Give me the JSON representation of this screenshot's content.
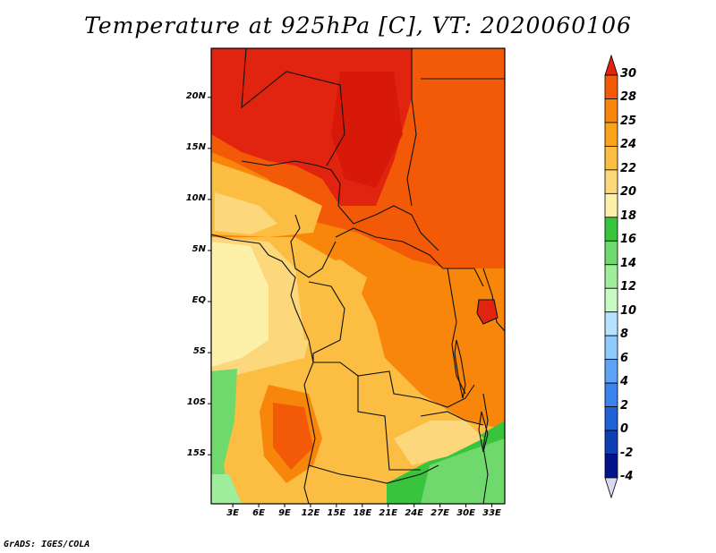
{
  "title": "Temperature at 925hPa [C], VT: 2020060106",
  "footer": "GrADS: IGES/COLA",
  "lat_labels": [
    "20N",
    "15N",
    "10N",
    "5N",
    "EQ",
    "5S",
    "10S",
    "15S"
  ],
  "lat_values": [
    20,
    15,
    10,
    5,
    0,
    -5,
    -10,
    -15
  ],
  "lon_labels": [
    "3E",
    "6E",
    "9E",
    "12E",
    "15E",
    "18E",
    "21E",
    "24E",
    "27E",
    "30E",
    "33E"
  ],
  "lon_values": [
    3,
    6,
    9,
    12,
    15,
    18,
    21,
    24,
    27,
    30,
    33
  ],
  "map_extent": {
    "lon": [
      0.5,
      34.5
    ],
    "lat": [
      -19.8,
      24.8
    ]
  },
  "colorbar": {
    "labels": [
      "30",
      "28",
      "25",
      "24",
      "22",
      "20",
      "18",
      "16",
      "14",
      "12",
      "10",
      "8",
      "6",
      "4",
      "2",
      "0",
      "-2",
      "-4"
    ],
    "colors": [
      "#e1240f",
      "#f25a07",
      "#f7860a",
      "#f9a21b",
      "#fbbd42",
      "#fcd77b",
      "#fdf0a8",
      "#39c43e",
      "#6fd96e",
      "#9fee9b",
      "#c8fac3",
      "#b5e3ff",
      "#8fcafe",
      "#5fa3f6",
      "#3b82ee",
      "#1e60d6",
      "#0e3fb5",
      "#04138a",
      "#000f6b"
    ]
  }
}
